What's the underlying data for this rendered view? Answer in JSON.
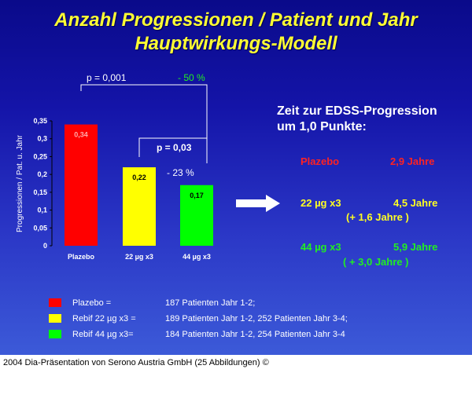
{
  "slide": {
    "title_line1": "Anzahl Progressionen / Patient und Jahr",
    "title_line2": "Hauptwirkungs-Modell"
  },
  "chart_data": {
    "type": "bar",
    "categories": [
      "Plazebo",
      "22 µg x3",
      "44 µg x3"
    ],
    "values": [
      0.34,
      0.22,
      0.17
    ],
    "value_labels": [
      "0,34",
      "0,22",
      "0,17"
    ],
    "colors": [
      "#ff0000",
      "#ffff00",
      "#00ff00"
    ],
    "ylabel": "Progressionen / Pat. u. Jahr",
    "ylim": [
      0,
      0.35
    ],
    "yticks": [
      0,
      0.05,
      0.1,
      0.15,
      0.2,
      0.25,
      0.3,
      0.35
    ],
    "ytick_labels": [
      "0",
      "0,05",
      "0,1",
      "0,15",
      "0,2",
      "0,25",
      "0,3",
      "0,35"
    ],
    "grid": false,
    "annotations": {
      "p_overall": "p = 0,001",
      "pct_overall": "- 50 %",
      "p_pair": "p = 0,03",
      "pct_pair": "- 23 %"
    }
  },
  "edss": {
    "title_line1": "Zeit zur EDSS-Progression",
    "title_line2": "um 1,0 Punkte:",
    "rows": [
      {
        "label": "Plazebo",
        "value": "2,9 Jahre",
        "gain": ""
      },
      {
        "label": "22 µg x3",
        "value": "4,5 Jahre",
        "gain": "(+ 1,6 Jahre )"
      },
      {
        "label": "44 µg x3",
        "value": "5,9 Jahre",
        "gain": "( + 3,0 Jahre )"
      }
    ]
  },
  "legend": [
    {
      "label": "Plazebo =",
      "detail": "187 Patienten Jahr 1-2;",
      "color": "#ff0000"
    },
    {
      "label": "Rebif 22 µg x3 =",
      "detail": "189 Patienten Jahr 1-2,  252 Patienten Jahr 3-4;",
      "color": "#ffff00"
    },
    {
      "label": "Rebif 44 µg x3=",
      "detail": "184 Patienten Jahr 1-2,  254 Patienten Jahr 3-4",
      "color": "#00ff00"
    }
  ],
  "caption": "2004 Dia-Präsentation von Serono Austria GmbH (25 Abbildungen) ©"
}
